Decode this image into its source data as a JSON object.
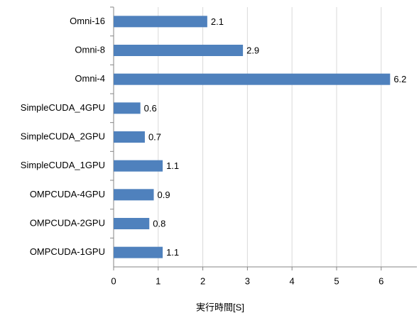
{
  "chart_data": {
    "type": "bar",
    "orientation": "horizontal",
    "x_label": "実行時間[S]",
    "categories": [
      "Omni-16",
      "Omni-8",
      "Omni-4",
      "SimpleCUDA_4GPU",
      "SimpleCUDA_2GPU",
      "SimpleCUDA_1GPU",
      "OMPCUDA-4GPU",
      "OMPCUDA-2GPU",
      "OMPCUDA-1GPU"
    ],
    "values": [
      2.1,
      2.9,
      6.2,
      0.6,
      0.7,
      1.1,
      0.9,
      0.8,
      1.1
    ],
    "color": "#4f81bd",
    "xlim": [
      0,
      6.8
    ],
    "xticks": [
      0,
      1,
      2,
      3,
      4,
      5,
      6
    ],
    "grid": true
  }
}
